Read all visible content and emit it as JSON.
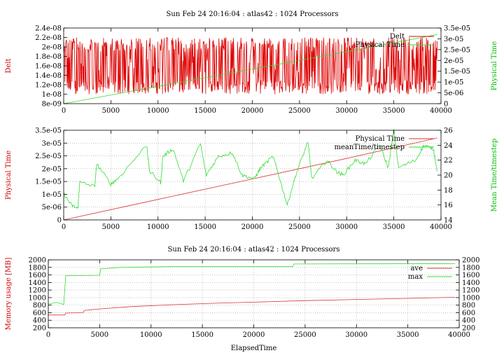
{
  "chart_data": [
    {
      "type": "line",
      "title": "Sun Feb 24 20:16:04 : atlas42 : 1024 Processors",
      "ylabel": "Delt",
      "ylabel_color": "#cc0000",
      "y2label": "Physical Time",
      "y2label_color": "#00bb00",
      "xlim": [
        0,
        40000
      ],
      "ylim": [
        8e-09,
        2.4e-08
      ],
      "y2lim": [
        0,
        3.5e-05
      ],
      "xticks": [
        "0",
        "5000",
        "10000",
        "15000",
        "20000",
        "25000",
        "30000",
        "35000",
        "40000"
      ],
      "yticks": [
        "8e-09",
        "1e-08",
        "1.2e-08",
        "1.4e-08",
        "1.6e-08",
        "1.8e-08",
        "2e-08",
        "2.2e-08",
        "2.4e-08"
      ],
      "y2ticks": [
        "0",
        "5e-06",
        "1e-05",
        "1.5e-05",
        "2e-05",
        "2.5e-05",
        "3e-05",
        "3.5e-05"
      ],
      "grid": false,
      "legend_position": "top-right",
      "series": [
        {
          "name": "Delt",
          "axis": "y",
          "color": "#dd0000",
          "pattern": "noise",
          "x_range": [
            0,
            39600
          ],
          "low": 1e-08,
          "high": 2.2e-08,
          "base": 1.6e-08
        },
        {
          "name": "Physical Time",
          "axis": "y2",
          "color": "#33dd33",
          "x": [
            0,
            10000,
            20000,
            30000,
            39600
          ],
          "values": [
            0,
            8e-06,
            1.6e-05,
            2.4e-05,
            3.2e-05
          ]
        }
      ]
    },
    {
      "type": "line",
      "title": "",
      "ylabel": "Physical Time",
      "ylabel_color": "#cc0000",
      "y2label": "Mean Time/timestep",
      "y2label_color": "#00bb00",
      "xlim": [
        0,
        40000
      ],
      "ylim": [
        0,
        3.5e-05
      ],
      "y2lim": [
        14,
        26
      ],
      "xticks": [
        "0",
        "5000",
        "10000",
        "15000",
        "20000",
        "25000",
        "30000",
        "35000",
        "40000"
      ],
      "yticks": [
        "0",
        "5e-06",
        "1e-05",
        "1.5e-05",
        "2e-05",
        "2.5e-05",
        "3e-05",
        "3.5e-05"
      ],
      "y2ticks": [
        "14",
        "16",
        "18",
        "20",
        "22",
        "24",
        "26"
      ],
      "grid": true,
      "legend_position": "top-right",
      "series": [
        {
          "name": "Physical Time",
          "axis": "y",
          "color": "#dd3333",
          "x": [
            0,
            10000,
            20000,
            30000,
            39600
          ],
          "values": [
            0,
            8e-06,
            1.6e-05,
            2.4e-05,
            3.2e-05
          ]
        },
        {
          "name": "meanTime/timestep",
          "axis": "y2",
          "color": "#33dd33",
          "pattern": "spiky",
          "x": [
            0,
            800,
            1500,
            1700,
            3300,
            3500,
            5000,
            5700,
            8800,
            9100,
            10300,
            10500,
            11600,
            12700,
            14500,
            15100,
            16400,
            17900,
            18900,
            20200,
            20900,
            22200,
            22900,
            23700,
            24600,
            25900,
            26300,
            27900,
            28900,
            29600,
            30900,
            32000,
            33500,
            34400,
            35000,
            35500,
            37300,
            38200,
            39200,
            39600
          ],
          "values": [
            17.5,
            16.0,
            15.5,
            19.0,
            18.5,
            21.5,
            18.8,
            19.5,
            24.0,
            20.5,
            19.0,
            22.5,
            23.5,
            19.2,
            24.2,
            20.0,
            22.5,
            23.0,
            20.0,
            19.5,
            21.0,
            22.5,
            19.5,
            16.0,
            20.0,
            24.5,
            19.5,
            22.0,
            20.5,
            20.0,
            22.0,
            21.5,
            24.0,
            21.0,
            26.0,
            21.0,
            22.0,
            24.0,
            23.5,
            20.5
          ]
        }
      ]
    },
    {
      "type": "line",
      "title": "Sun Feb 24 20:16:04 : atlas42 : 1024 Processors",
      "xlabel": "ElapsedTime",
      "ylabel": "Memory usage [MB]",
      "ylabel_color": "#cc0000",
      "xlim": [
        0,
        40000
      ],
      "ylim": [
        200,
        2000
      ],
      "y2lim": [
        200,
        2000
      ],
      "xticks": [
        "0",
        "5000",
        "10000",
        "15000",
        "20000",
        "25000",
        "30000",
        "35000",
        "40000"
      ],
      "yticks": [
        "200",
        "400",
        "600",
        "800",
        "1000",
        "1200",
        "1400",
        "1600",
        "1800",
        "2000"
      ],
      "y2ticks": [
        "200",
        "400",
        "600",
        "800",
        "1000",
        "1200",
        "1400",
        "1600",
        "1800",
        "2000"
      ],
      "grid": true,
      "legend_position": "top-right",
      "series": [
        {
          "name": "ave",
          "axis": "y",
          "color": "#dd3333",
          "x": [
            0,
            1600,
            1700,
            3400,
            3500,
            5000,
            8000,
            12000,
            16000,
            20000,
            25000,
            30000,
            35000,
            39600
          ],
          "values": [
            540,
            540,
            590,
            600,
            660,
            700,
            760,
            810,
            850,
            880,
            920,
            950,
            980,
            1010
          ]
        },
        {
          "name": "max",
          "axis": "y",
          "color": "#33dd33",
          "x": [
            0,
            800,
            1500,
            1600,
            1700,
            5000,
            5100,
            7000,
            12000,
            23800,
            23900,
            39600
          ],
          "values": [
            830,
            870,
            820,
            1200,
            1580,
            1590,
            1760,
            1800,
            1820,
            1820,
            1890,
            1900
          ]
        }
      ]
    }
  ]
}
